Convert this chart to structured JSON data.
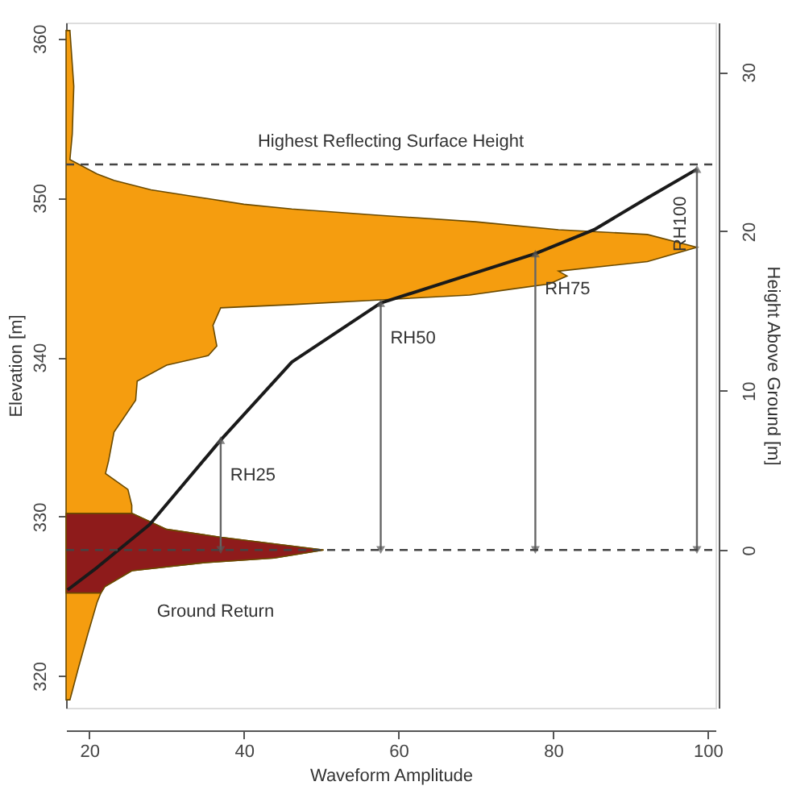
{
  "chart_data": {
    "type": "area",
    "orientation": "horizontal",
    "xlabel": "Waveform Amplitude",
    "ylabel": "Elevation [m]",
    "y2label": "Height Above Ground [m]",
    "xlim": [
      17,
      101
    ],
    "xticks": [
      20,
      40,
      60,
      80,
      100
    ],
    "ylim": [
      318,
      361
    ],
    "yticks": [
      320,
      330,
      340,
      350,
      360
    ],
    "y2lim": [
      -9.9,
      33.1
    ],
    "y2ticks": [
      0,
      10,
      20,
      30
    ],
    "grid": false,
    "series": [
      {
        "color": "#f59d0f",
        "x": [
          360.5,
          357,
          354,
          352.4,
          351.5,
          351.1,
          350.5,
          350,
          349.6,
          349.3,
          348.9,
          348.5,
          348,
          347.7,
          346.9,
          346,
          345.4,
          345.1,
          344.6,
          344.3,
          343.9,
          343.6,
          343.3,
          343.1,
          342,
          340.7,
          340.1,
          339.5,
          338.5,
          337.3,
          335.3,
          333.5,
          332.7,
          331.7,
          330.7,
          330.2,
          329.2,
          328.7,
          327.9,
          327.4,
          327.1,
          326.6,
          325.6,
          325.2,
          324.6,
          322.6,
          320.5,
          318.5
        ],
        "values": [
          17.5,
          18,
          17.8,
          17.5,
          21,
          23.2,
          28,
          34.7,
          40,
          46.2,
          57.7,
          70,
          80.7,
          92.2,
          98.6,
          92.2,
          80.7,
          81.8,
          79.5,
          75,
          69.2,
          57.7,
          46.2,
          37,
          36,
          36.5,
          35.4,
          30,
          26.2,
          26,
          23.2,
          22.5,
          22.1,
          25,
          25.5,
          25.5,
          30,
          37,
          50.3,
          43.9,
          34.7,
          25.5,
          22,
          21.5,
          21,
          19.8,
          18.6,
          17.5
        ]
      },
      {
        "color": "#8e1b1b",
        "x": [
          330.2,
          329.2,
          328.7,
          327.9,
          327.4,
          327.1,
          326.6,
          325.6,
          325.2
        ],
        "values": [
          25.5,
          30,
          37,
          50.3,
          43.9,
          34.7,
          25.5,
          22,
          21.5
        ]
      },
      {
        "type": "line",
        "color": "#1a1a1a",
        "x": [
          325.4,
          326.8,
          329.5,
          334.8,
          339.7,
          343.4,
          346.5,
          348,
          350,
          351.8
        ],
        "values": [
          17.2,
          21,
          27.8,
          37,
          46.2,
          57.7,
          77.7,
          85.3,
          92.2,
          98.6
        ]
      }
    ],
    "ref_lines": [
      {
        "axis": "y2",
        "value": 24.2,
        "label": "Highest Reflecting Surface Height",
        "line_style": "dashed"
      },
      {
        "axis": "y2",
        "value": 0,
        "line_style": "dashed"
      }
    ],
    "annotations": [
      {
        "text": "RH25",
        "x": 37,
        "y": 334.8
      },
      {
        "text": "RH50",
        "x": 57.7,
        "y": 343.4
      },
      {
        "text": "RH75",
        "x": 77.7,
        "y": 346.5
      },
      {
        "text": "RH100",
        "x": 98.6,
        "y": 351.8
      },
      "Ground Return"
    ]
  }
}
